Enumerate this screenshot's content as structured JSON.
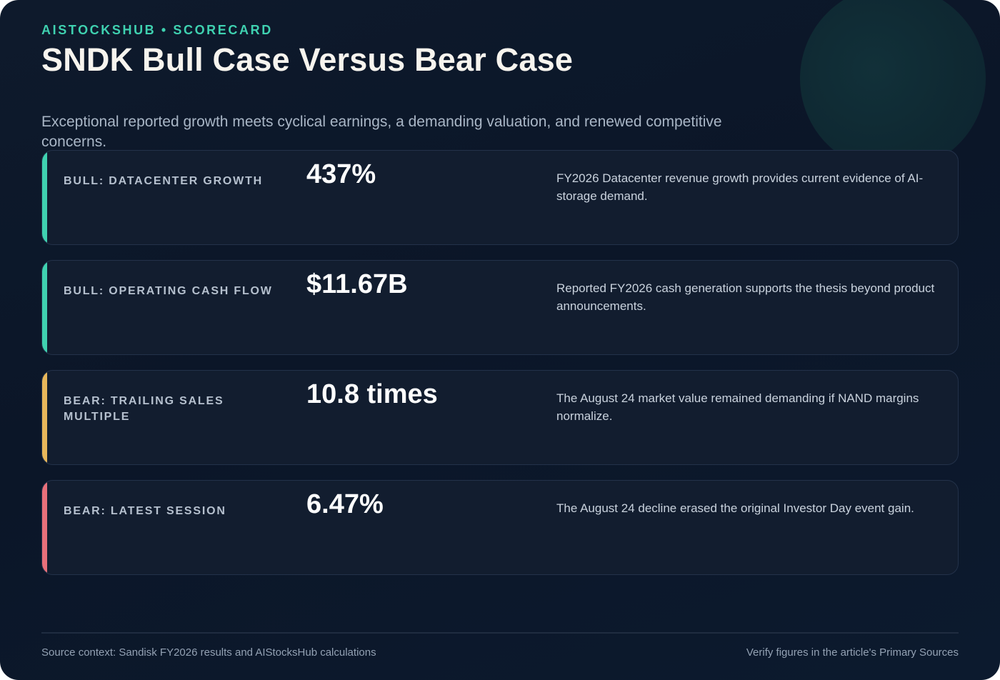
{
  "header": {
    "kicker": "AISTOCKSHUB • SCORECARD",
    "title": "SNDK Bull Case Versus Bear Case",
    "subtitle": "Exceptional reported growth meets cyclical earnings, a demanding valuation, and renewed competitive concerns."
  },
  "colors": {
    "bull": "#3fd1b0",
    "bear_valuation": "#e8b75a",
    "bear_session": "#e8707a"
  },
  "cards": [
    {
      "label": "BULL: DATACENTER GROWTH",
      "value": "437%",
      "description": "FY2026 Datacenter revenue growth provides current evidence of AI-storage demand."
    },
    {
      "label": "BULL: OPERATING CASH FLOW",
      "value": "$11.67B",
      "description": "Reported FY2026 cash generation supports the thesis beyond product announcements."
    },
    {
      "label": "BEAR: TRAILING SALES MULTIPLE",
      "value": "10.8 times",
      "description": "The August 24 market value remained demanding if NAND margins normalize."
    },
    {
      "label": "BEAR: LATEST SESSION",
      "value": "6.47%",
      "description": "The August 24 decline erased the original Investor Day event gain."
    }
  ],
  "footer": {
    "source": "Source context: Sandisk FY2026 results and AIStocksHub calculations",
    "verify": "Verify figures in the article's Primary Sources"
  }
}
